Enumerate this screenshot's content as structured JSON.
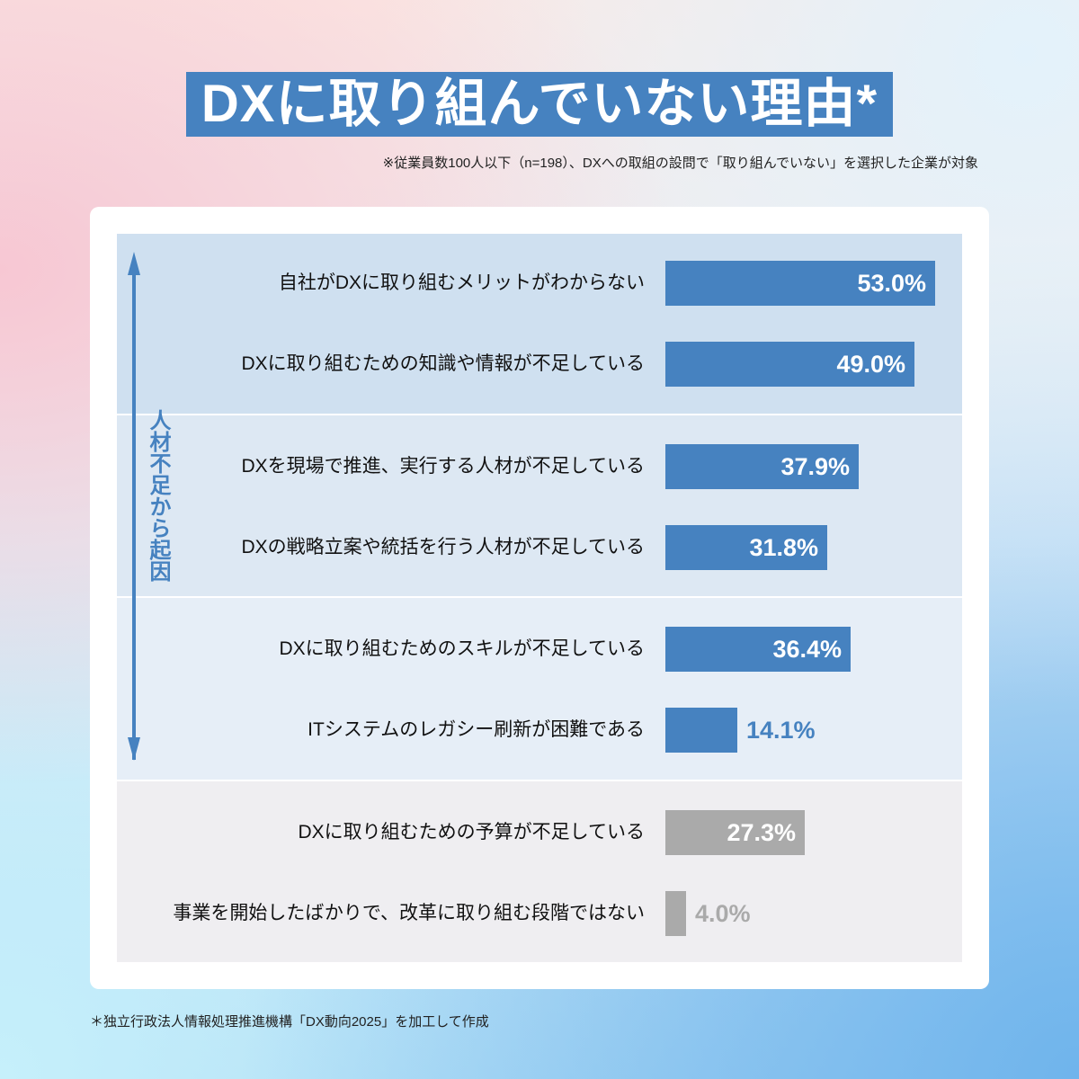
{
  "title": "DXに取り組んでいない理由*",
  "subtitle": "※従業員数100人以下（n=198）、DXへの取組の設問で「取り組んでいない」を選択した企業が対象",
  "side_label": "人材不足から起因",
  "footnote": "＊独立行政法人情報処理推進機構「DX動向2025」を加工して作成",
  "colors": {
    "bar_blue": "#4682c0",
    "bar_gray": "#aaaaaa",
    "section_1": "#cfe0f0",
    "section_2": "#dde8f3",
    "section_3": "#e6eef7",
    "section_4": "#efeef1"
  },
  "rows": [
    {
      "label": "自社がDXに取り組むメリットがわからない",
      "value": 53.0,
      "display": "53.0%"
    },
    {
      "label": "DXに取り組むための知識や情報が不足している",
      "value": 49.0,
      "display": "49.0%"
    },
    {
      "label": "DXを現場で推進、実行する人材が不足している",
      "value": 37.9,
      "display": "37.9%"
    },
    {
      "label": "DXの戦略立案や統括を行う人材が不足している",
      "value": 31.8,
      "display": "31.8%"
    },
    {
      "label": "DXに取り組むためのスキルが不足している",
      "value": 36.4,
      "display": "36.4%"
    },
    {
      "label": "ITシステムのレガシー刷新が困難である",
      "value": 14.1,
      "display": "14.1%"
    },
    {
      "label": "DXに取り組むための予算が不足している",
      "value": 27.3,
      "display": "27.3%"
    },
    {
      "label": "事業を開始したばかりで、改革に取り組む段階ではない",
      "value": 4.0,
      "display": "4.0%"
    }
  ],
  "chart_data": {
    "type": "bar",
    "orientation": "horizontal",
    "title": "DXに取り組んでいない理由*",
    "subtitle": "※従業員数100人以下（n=198）、DXへの取組の設問で「取り組んでいない」を選択した企業が対象",
    "categories": [
      "自社がDXに取り組むメリットがわからない",
      "DXに取り組むための知識や情報が不足している",
      "DXを現場で推進、実行する人材が不足している",
      "DXの戦略立案や統括を行う人材が不足している",
      "DXに取り組むためのスキルが不足している",
      "ITシステムのレガシー刷新が困難である",
      "DXに取り組むための予算が不足している",
      "事業を開始したばかりで、改革に取り組む段階ではない"
    ],
    "values": [
      53.0,
      49.0,
      37.9,
      31.8,
      36.4,
      14.1,
      27.3,
      4.0
    ],
    "unit": "%",
    "groups": [
      {
        "name": "section-1",
        "indices": [
          0,
          1
        ]
      },
      {
        "name": "section-2",
        "indices": [
          2,
          3
        ]
      },
      {
        "name": "section-3",
        "indices": [
          4,
          5
        ]
      },
      {
        "name": "section-4",
        "indices": [
          6,
          7
        ]
      }
    ],
    "annotation": "人材不足から起因 (arrow spanning rows 1–6)",
    "bar_colors": [
      "#4682c0",
      "#4682c0",
      "#4682c0",
      "#4682c0",
      "#4682c0",
      "#4682c0",
      "#aaaaaa",
      "#aaaaaa"
    ],
    "xlabel": "",
    "ylabel": "",
    "grid": false,
    "legend": "none",
    "source": "＊独立行政法人情報処理推進機構「DX動向2025」を加工して作成"
  }
}
